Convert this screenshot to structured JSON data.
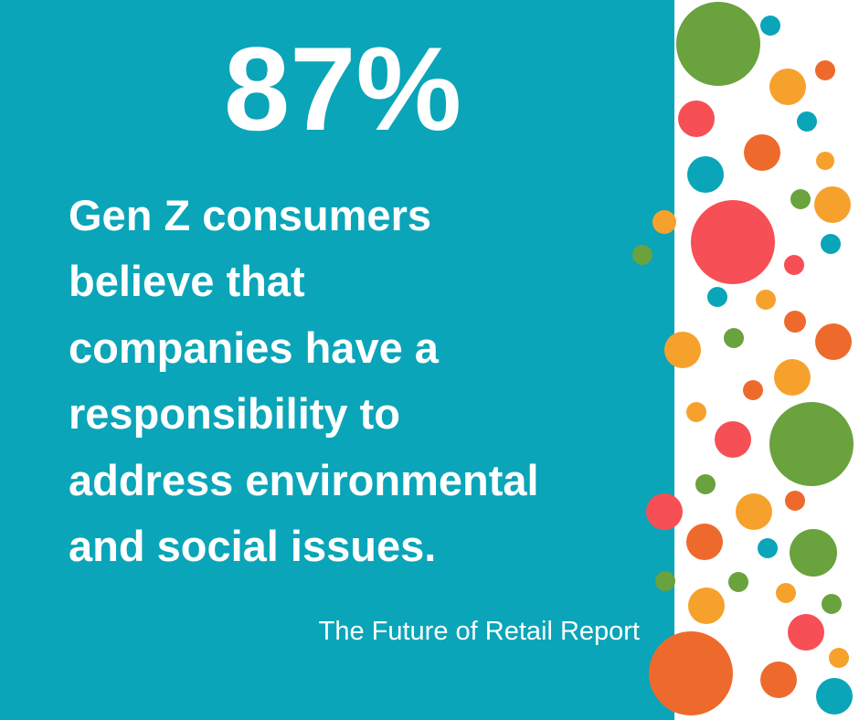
{
  "stat": "87%",
  "statement": {
    "lines": [
      "Gen Z consumers",
      "believe that",
      "companies have a",
      "responsibility to",
      "address environmental",
      "and social issues."
    ]
  },
  "source": "The Future of Retail Report"
}
